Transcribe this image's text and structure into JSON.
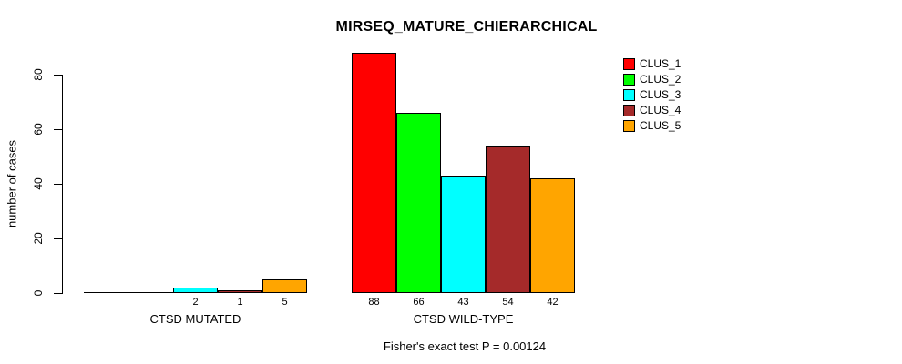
{
  "chart_data": {
    "type": "bar",
    "title": "MIRSEQ_MATURE_CHIERARCHICAL",
    "ylabel": "number of cases",
    "xlabel": "",
    "subtitle": "Fisher's exact test P = 0.00124",
    "categories": [
      "CTSD MUTATED",
      "CTSD WILD-TYPE"
    ],
    "series": [
      {
        "name": "CLUS_1",
        "color": "#ff0000",
        "values": [
          0,
          88
        ]
      },
      {
        "name": "CLUS_2",
        "color": "#00ff00",
        "values": [
          0,
          66
        ]
      },
      {
        "name": "CLUS_3",
        "color": "#00ffff",
        "values": [
          2,
          43
        ]
      },
      {
        "name": "CLUS_4",
        "color": "#a52a2a",
        "values": [
          1,
          54
        ]
      },
      {
        "name": "CLUS_5",
        "color": "#ffa500",
        "values": [
          5,
          42
        ]
      }
    ],
    "bar_value_labels": [
      [
        "",
        "",
        "2",
        "1",
        "5"
      ],
      [
        "88",
        "66",
        "43",
        "54",
        "42"
      ]
    ],
    "yticks": [
      0,
      20,
      40,
      60,
      80
    ],
    "ylim": [
      0,
      88
    ],
    "grid": false,
    "legend": {
      "position": "right",
      "entries": [
        "CLUS_1",
        "CLUS_2",
        "CLUS_3",
        "CLUS_4",
        "CLUS_5"
      ]
    },
    "colors": {
      "background": "#ffffff",
      "axis": "#000000",
      "text": "#000000"
    }
  }
}
